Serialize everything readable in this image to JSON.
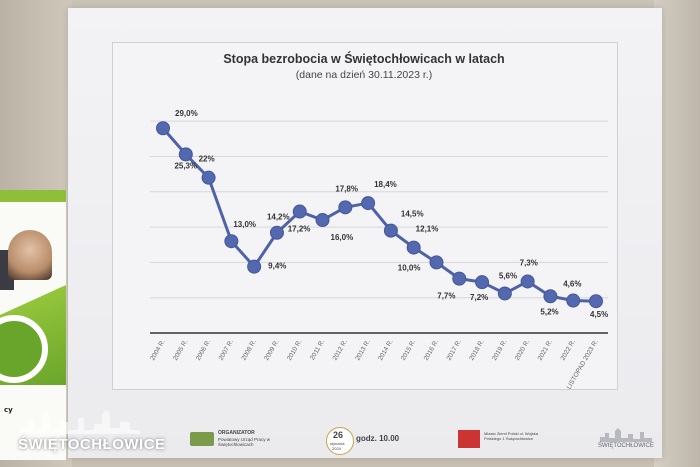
{
  "slide": {
    "title": "Stopa bezrobocia w Świętochłowicach w latach",
    "subtitle": "(dane na dzień 30.11.2023 r.)"
  },
  "footer": {
    "brand_left": "ŚWIĘTOCHŁOWICE",
    "organizer_label": "ORGANIZATOR",
    "organizer_name": "Powiatowy Urząd Pracy w Świętochłowicach",
    "date_day": "26",
    "date_month": "stycznia",
    "date_year": "2024",
    "time": "godz. 10.00",
    "partner": "Miasto Ziemi Polski ul. Wojska Polskiego 1 Świętochłowice",
    "brand_right": "ŚWIĘTOCHŁOWICE",
    "rollup_text": "cy"
  },
  "chart_data": {
    "type": "line",
    "title": "Stopa bezrobocia w Świętochłowicach w latach",
    "subtitle": "(dane na dzień 30.11.2023 r.)",
    "categories": [
      "2004 R.",
      "2005 R.",
      "2006 R.",
      "2007 R.",
      "2008 R.",
      "2009 R.",
      "2010 R.",
      "2011 R.",
      "2012 R.",
      "2013 R.",
      "2014 R.",
      "2015 R.",
      "2016 R.",
      "2017 R.",
      "2018 R.",
      "2019 R.",
      "2020 R.",
      "2021 R.",
      "2022 R.",
      "LISTOPAD 2023 R."
    ],
    "values": [
      29.0,
      25.3,
      22.0,
      13.0,
      9.4,
      14.2,
      17.2,
      16.0,
      17.8,
      18.4,
      14.5,
      12.1,
      10.0,
      7.7,
      7.2,
      5.6,
      7.3,
      5.2,
      4.6,
      4.5
    ],
    "labels": [
      "29,0%",
      "25,3%",
      "22%",
      "13,0%",
      "9,4%",
      "14,2%",
      "17,2%",
      "16,0%",
      "17,8%",
      "18,4%",
      "14,5%",
      "12,1%",
      "10,0%",
      "7,7%",
      "7,2%",
      "5,6%",
      "7,3%",
      "5,2%",
      "4,6%",
      "4,5%"
    ],
    "ylim": [
      0,
      33
    ],
    "grid": true,
    "line_color": "#4e62a8",
    "marker_color": "#5468b0"
  }
}
